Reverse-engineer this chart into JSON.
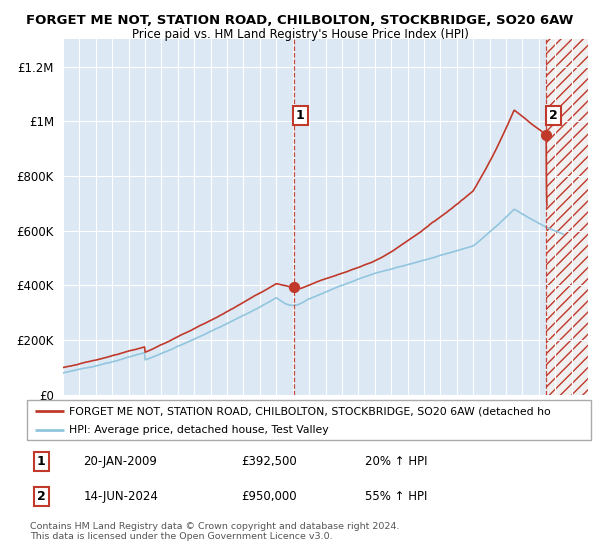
{
  "title": "FORGET ME NOT, STATION ROAD, CHILBOLTON, STOCKBRIDGE, SO20 6AW",
  "subtitle": "Price paid vs. HM Land Registry's House Price Index (HPI)",
  "ylim": [
    0,
    1300000
  ],
  "yticks": [
    0,
    200000,
    400000,
    600000,
    800000,
    1000000,
    1200000
  ],
  "ytick_labels": [
    "£0",
    "£200K",
    "£400K",
    "£600K",
    "£800K",
    "£1M",
    "£1.2M"
  ],
  "x_start_year": 1995,
  "x_end_year": 2027,
  "sale1_date": 2009.05,
  "sale1_price": 392500,
  "sale1_label": "1",
  "sale1_date_str": "20-JAN-2009",
  "sale1_price_str": "£392,500",
  "sale1_hpi_str": "20% ↑ HPI",
  "sale2_date": 2024.45,
  "sale2_price": 950000,
  "sale2_label": "2",
  "sale2_date_str": "14-JUN-2024",
  "sale2_price_str": "£950,000",
  "sale2_hpi_str": "55% ↑ HPI",
  "hpi_color": "#92c5de",
  "price_color": "#c0392b",
  "legend_label_price": "FORGET ME NOT, STATION ROAD, CHILBOLTON, STOCKBRIDGE, SO20 6AW (detached ho",
  "legend_label_hpi": "HPI: Average price, detached house, Test Valley",
  "footnote": "Contains HM Land Registry data © Crown copyright and database right 2024.\nThis data is licensed under the Open Government Licence v3.0.",
  "background_color": "#ffffff",
  "plot_bg_color": "#dce9f5",
  "grid_color": "#ffffff",
  "hatch_color": "#c0392b",
  "hatch_bg_color": "#eeeeee"
}
